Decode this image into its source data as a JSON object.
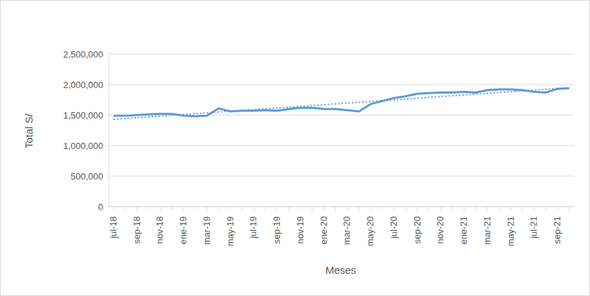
{
  "chart_data": {
    "type": "line",
    "x_label": "Meses",
    "y_label": "Total S/",
    "categories": [
      "jul-18",
      null,
      "sep-18",
      null,
      "nov-18",
      null,
      "ene-19",
      null,
      "mar-19",
      null,
      "may-19",
      null,
      "jul-19",
      null,
      "sep-19",
      null,
      "nov-19",
      null,
      "ene-20",
      null,
      "mar-20",
      null,
      "may-20",
      null,
      "jul-20",
      null,
      "sep-20",
      null,
      "nov-20",
      null,
      "ene-21",
      null,
      "mar-21",
      null,
      "may-21",
      null,
      "jul-21",
      null,
      "sep-21",
      null
    ],
    "series": [
      {
        "color": "#5b9bd5",
        "line_style": "solid",
        "marker": "none",
        "values": [
          1490000,
          1490000,
          1500000,
          1510000,
          1520000,
          1520000,
          1490000,
          1480000,
          1490000,
          1610000,
          1560000,
          1570000,
          1570000,
          1580000,
          1570000,
          1600000,
          1620000,
          1620000,
          1600000,
          1600000,
          1580000,
          1560000,
          1680000,
          1730000,
          1780000,
          1810000,
          1850000,
          1860000,
          1870000,
          1870000,
          1880000,
          1870000,
          1910000,
          1920000,
          1920000,
          1910000,
          1880000,
          1870000,
          1930000,
          1940000
        ]
      },
      {
        "color": "#5b9bd5",
        "line_style": "dotted",
        "marker": "none",
        "values": [
          1430000,
          1443000,
          1457000,
          1470000,
          1483000,
          1497000,
          1510000,
          1523000,
          1537000,
          1550000,
          1563000,
          1577000,
          1590000,
          1603000,
          1617000,
          1630000,
          1643000,
          1657000,
          1670000,
          1683000,
          1697000,
          1710000,
          1723000,
          1737000,
          1750000,
          1763000,
          1777000,
          1790000,
          1803000,
          1817000,
          1830000,
          1843000,
          1857000,
          1870000,
          1883000,
          1897000,
          1910000,
          1923000,
          1937000,
          1950000
        ]
      }
    ],
    "ylim": [
      0,
      2500000
    ],
    "yticks": [
      0,
      {
        "value": 500000,
        "label": "500,000"
      },
      {
        "value": 1000000,
        "label": "1,000,000"
      },
      {
        "value": 1500000,
        "label": "1,500,000"
      },
      {
        "value": 2000000,
        "label": "2,000,000"
      },
      {
        "value": 2500000,
        "label": "2,500,000"
      }
    ],
    "grid": true
  }
}
